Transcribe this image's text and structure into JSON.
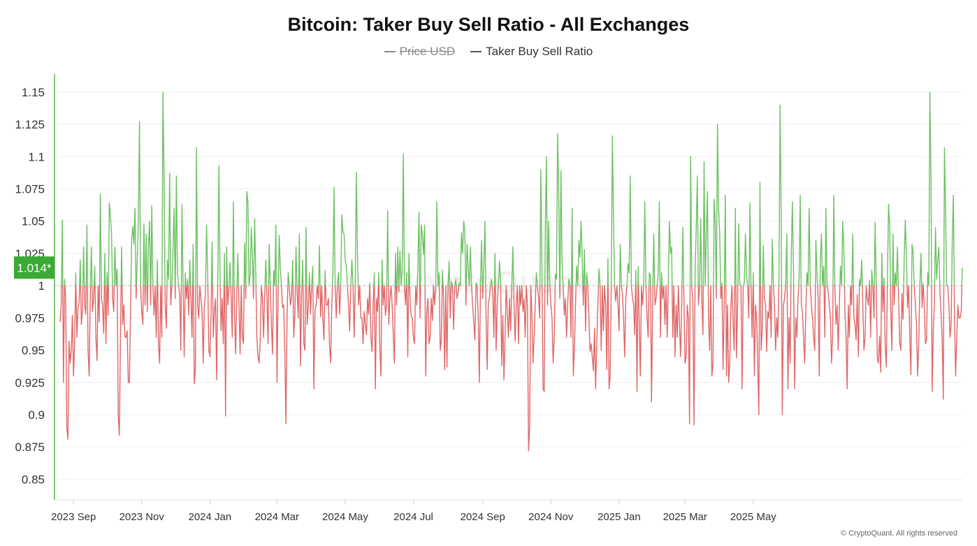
{
  "title": "Bitcoin: Taker Buy Sell Ratio - All Exchanges",
  "legend": [
    {
      "label": "Price USD",
      "hidden": true
    },
    {
      "label": "Taker Buy Sell Ratio",
      "hidden": false
    }
  ],
  "watermark": "CryptoQuant",
  "footer": "© CryptoQuant. All rights reserved",
  "current_value_label": "1.014*",
  "colors": {
    "above": "#6cc062",
    "below": "#e06666",
    "marker": "#3aaa35",
    "axis": "#56b84c"
  },
  "chart_data": {
    "type": "line",
    "title": "Bitcoin: Taker Buy Sell Ratio - All Exchanges",
    "xlabel": "",
    "ylabel": "",
    "baseline": 1,
    "ylim": [
      0.834,
      1.164
    ],
    "yticks": [
      0.85,
      0.875,
      0.9,
      0.925,
      0.95,
      0.975,
      1,
      1.025,
      1.05,
      1.075,
      1.1,
      1.125,
      1.15
    ],
    "ytick_labels": [
      "0.85",
      "0.875",
      "0.9",
      "0.925",
      "0.95",
      "0.975",
      "1",
      "1.025",
      "1.05",
      "1.075",
      "1.1",
      "1.125",
      "1.15"
    ],
    "xticks": [
      {
        "label": "2023 Sep",
        "index": 12
      },
      {
        "label": "2023 Nov",
        "index": 73
      },
      {
        "label": "2024 Jan",
        "index": 134
      },
      {
        "label": "2024 Mar",
        "index": 194
      },
      {
        "label": "2024 May",
        "index": 255
      },
      {
        "label": "2024 Jul",
        "index": 316
      },
      {
        "label": "2024 Sep",
        "index": 378
      },
      {
        "label": "2024 Nov",
        "index": 439
      },
      {
        "label": "2025 Jan",
        "index": 500
      },
      {
        "label": "2025 Mar",
        "index": 559
      },
      {
        "label": "2025 May",
        "index": 620
      }
    ],
    "x_start": "2023-08-21",
    "x_end": "2025-06-25",
    "current_value": 1.014,
    "series": [
      {
        "name": "Taker Buy Sell Ratio",
        "values": [
          0.972,
          0.985,
          1.051,
          0.925,
          1.005,
          0.99,
          0.89,
          0.881,
          0.957,
          0.94,
          0.95,
          0.977,
          0.93,
          0.955,
          1.01,
          0.96,
          0.983,
          0.987,
          1.02,
          0.97,
          0.98,
          1.03,
          0.985,
          0.978,
          1.047,
          0.95,
          0.93,
          0.99,
          1.03,
          0.98,
          0.99,
          1.015,
          0.96,
          0.942,
          1.0,
          0.972,
          1.071,
          0.99,
          0.985,
          0.963,
          1.025,
          0.955,
          1.01,
          0.977,
          1.064,
          1.055,
          1.04,
          0.99,
          0.98,
          1.03,
          1.0,
          1.013,
          0.9,
          0.884,
          0.96,
          1.03,
          0.97,
          0.985,
          0.96,
          0.96,
          0.965,
          0.925,
          0.925,
          0.98,
          1.035,
          1.046,
          1.032,
          1.06,
          0.99,
          1.02,
          1.05,
          1.127,
          1.0,
          0.98,
          0.97,
          1.048,
          0.985,
          1.04,
          0.98,
          1.03,
          1.05,
          0.985,
          1.062,
          0.999,
          0.977,
          1.0,
          0.96,
          1.02,
          0.955,
          0.94,
          1.0,
          0.96,
          1.15,
          1.085,
          0.985,
          0.967,
          1.02,
          1.005,
          1.087,
          0.985,
          1.0,
          1.03,
          1.06,
          0.99,
          1.085,
          1.01,
          1.0,
          0.993,
          0.95,
          1.063,
          1.0,
          0.945,
          1.01,
          0.99,
          1.005,
          0.977,
          1.02,
          0.99,
          0.96,
          1.032,
          0.924,
          0.935,
          1.107,
          0.985,
          0.975,
          1.0,
          0.99,
          0.98,
          0.94,
          0.983,
          0.994,
          1.047,
          1.01,
          0.95,
          0.945,
          0.977,
          1.034,
          0.96,
          0.98,
          0.99,
          0.927,
          1.0,
          1.093,
          1.01,
          0.965,
          0.99,
          0.955,
          1.025,
          0.899,
          1.03,
          0.985,
          0.997,
          1.018,
          0.99,
          0.96,
          1.065,
          0.977,
          0.947,
          0.99,
          1.025,
          0.985,
          0.947,
          1.0,
          0.96,
          0.955,
          1.033,
          0.99,
          1.073,
          1.065,
          1.0,
          1.008,
          1.045,
          1.023,
          0.99,
          1.052,
          1.01,
          0.96,
          0.945,
          0.94,
          0.957,
          1.0,
          0.99,
          0.96,
          0.993,
          1.02,
          0.99,
          0.955,
          1.032,
          1.0,
          0.97,
          0.947,
          1.012,
          1.0,
          1.047,
          0.925,
          0.993,
          1.039,
          1.013,
          1.0,
          0.983,
          0.985,
          0.95,
          0.893,
          0.975,
          1.01,
          1.0,
          0.985,
          0.99,
          1.02,
          0.96,
          0.977,
          1.03,
          0.995,
          0.975,
          1.04,
          0.938,
          0.991,
          1.02,
          0.955,
          0.95,
          1.045,
          0.97,
          0.983,
          1.01,
          0.978,
          1.0,
          1.015,
          0.92,
          0.98,
          0.985,
          1.0,
          0.99,
          1.031,
          0.976,
          1.0,
          0.975,
          0.958,
          1.012,
          0.985,
          0.985,
          0.99,
          0.953,
          0.94,
          0.985,
          1.011,
          1.076,
          1.0,
          0.975,
          1.0,
          1.01,
          0.978,
          1.0,
          1.055,
          1.042,
          1.04,
          1.02,
          1.015,
          1.0,
          0.985,
          0.965,
          1.0,
          1.02,
          1.0,
          0.96,
          1.0,
          1.088,
          1.025,
          0.985,
          1.0,
          0.975,
          0.975,
          0.955,
          0.98,
          0.97,
          0.962,
          0.99,
          0.978,
          1.002,
          0.96,
          0.949,
          0.985,
          1.01,
          0.92,
          0.99,
          0.98,
          1.01,
          0.95,
          0.93,
          1.02,
          0.985,
          1.0,
          0.977,
          0.985,
          1.058,
          0.97,
          0.99,
          1.0,
          0.985,
          0.962,
          0.94,
          1.025,
          0.985,
          1.03,
          0.995,
          1.027,
          1.0,
          1.012,
          1.102,
          1.0,
          0.985,
          1.01,
          0.945,
          1.025,
          0.99,
          0.977,
          0.975,
          0.96,
          0.955,
          1.0,
          0.985,
          1.015,
          1.057,
          0.975,
          1.047,
          1.04,
          1.024,
          1.047,
          0.93,
          0.98,
          0.99,
          0.955,
          0.96,
          0.99,
          0.973,
          1.0,
          0.985,
          1.0,
          1.065,
          1.0,
          1.01,
          0.95,
          0.958,
          1.012,
          0.99,
          0.935,
          1.0,
          0.937,
          1.0,
          1.019,
          0.975,
          1.003,
          1.0,
          0.966,
          1.0,
          1.005,
          0.99,
          0.995,
          1.002,
          1.0,
          1.041,
          1.025,
          1.05,
          1.043,
          0.985,
          1.032,
          1.014,
          1.0,
          1.03,
          1.0,
          0.985,
          0.972,
          0.958,
          1.002,
          1.0,
          0.975,
          0.925,
          1.0,
          1.035,
          0.99,
          1.015,
          1.05,
          0.975,
          0.935,
          0.987,
          0.99,
          1.0,
          1.005,
          0.995,
          0.96,
          1.025,
          0.95,
          0.985,
          1.0,
          1.019,
          1.005,
          0.938,
          0.977,
          0.927,
          0.96,
          1.0,
          0.98,
          0.96,
          0.99,
          0.965,
          1.0,
          1.03,
          0.985,
          0.957,
          0.985,
          1.0,
          0.955,
          1.0,
          0.985,
          1.0,
          0.98,
          0.99,
          0.96,
          1.0,
          0.985,
          0.872,
          0.891,
          1.0,
          0.978,
          0.94,
          0.96,
          0.985,
          1.01,
          1.0,
          0.99,
          0.975,
          1.09,
          1.013,
          0.92,
          0.918,
          1.045,
          1.1,
          0.985,
          1.05,
          1.0,
          0.985,
          0.975,
          0.94,
          0.96,
          1.009,
          1.005,
          1.118,
          1.07,
          0.99,
          1.089,
          1.017,
          1.0,
          0.977,
          0.99,
          0.96,
          0.985,
          1.005,
          1.0,
          0.96,
          1.06,
          0.93,
          0.95,
          0.985,
          1.015,
          1.0,
          1.035,
          1.022,
          1.05,
          1.022,
          0.985,
          1.028,
          0.965,
          1.01,
          1.0,
          0.975,
          0.949,
          0.955,
          0.945,
          0.934,
          0.967,
          0.92,
          0.955,
          0.985,
          1.013,
          1.0,
          0.95,
          1.0,
          0.965,
          1.0,
          0.985,
          0.935,
          1.021,
          0.92,
          0.93,
          1.0,
          1.116,
          1.05,
          1.0,
          0.988,
          1.0,
          0.985,
          0.965,
          1.032,
          1.0,
          0.994,
          0.975,
          0.945,
          0.99,
          1.0,
          1.017,
          1.01,
          1.085,
          1.0,
          0.99,
          0.985,
          0.962,
          1.012,
          0.918,
          1.015,
          0.97,
          0.93,
          1.0,
          0.985,
          1.0,
          1.065,
          1.0,
          0.975,
          0.96,
          1.01,
          1.008,
          0.91,
          0.985,
          1.04,
          0.985,
          0.99,
          1.0,
          1.01,
          1.065,
          0.96,
          1.01,
          0.99,
          1.0,
          0.97,
          1.0,
          0.96,
          1.0,
          1.05,
          1.025,
          1.03,
          0.96,
          1.0,
          0.945,
          0.985,
          0.96,
          1.0,
          0.97,
          0.945,
          0.985,
          1.045,
          0.99,
          0.94,
          0.945,
          0.985,
          0.975,
          0.893,
          1.1,
          1.0,
          0.985,
          0.892,
          1.01,
          1.045,
          1.085,
          0.985,
          1.0,
          1.052,
          0.99,
          0.962,
          1.096,
          1.0,
          1.04,
          1.073,
          0.975,
          0.95,
          1.0,
          0.93,
          0.94,
          1.067,
          1.05,
          0.99,
          1.125,
          1.06,
          1.04,
          0.99,
          1.002,
          0.935,
          0.985,
          1.07,
          0.93,
          0.985,
          0.925,
          0.94,
          0.985,
          1.0,
          0.97,
          0.95,
          1.06,
          0.944,
          0.985,
          1.048,
          1.0,
          1.0,
          0.92,
          1.0,
          1.002,
          1.04,
          1.008,
          1.0,
          0.975,
          1.064,
          1.0,
          0.96,
          1.01,
          0.93,
          0.985,
          0.975,
          0.94,
          0.9,
          1.08,
          0.95,
          0.965,
          1.031,
          0.99,
          0.985,
          0.949,
          0.98,
          0.975,
          1.0,
          0.96,
          1.036,
          1.0,
          0.986,
          0.95,
          0.975,
          0.96,
          1.005,
          1.14,
          1.05,
          0.9,
          0.985,
          0.99,
          1.0,
          1.04,
          0.92,
          0.975,
          0.94,
          1.025,
          1.065,
          1.01,
          0.92,
          0.975,
          0.96,
          0.99,
          1.005,
          1.07,
          0.985,
          0.98,
          0.96,
          0.94,
          0.98,
          1.01,
          1.0,
          1.06,
          1.0,
          0.985,
          0.975,
          0.96,
          0.95,
          1.035,
          1.01,
          0.99,
          0.93,
          1.02,
          1.04,
          1.0,
          1.015,
          0.96,
          1.06,
          1.0,
          0.995,
          0.985,
          0.976,
          0.94,
          0.96,
          1.07,
          1.0,
          0.97,
          0.985,
          0.95,
          0.985,
          1.015,
          1.0,
          1.05,
          1.03,
          0.98,
          0.96,
          0.92,
          0.985,
          0.96,
          1.0,
          0.985,
          1.04,
          0.975,
          0.97,
          0.958,
          0.993,
          0.945,
          1.005,
          1.0,
          1.02,
          0.985,
          0.95,
          0.96,
          1.0,
          0.99,
          0.985,
          1.004,
          0.96,
          1.012,
          1.0,
          0.975,
          1.049,
          1.0,
          0.944,
          0.94,
          0.961,
          0.933,
          1.025,
          0.98,
          1.006,
          0.954,
          0.937,
          1.005,
          1.063,
          1.047,
          0.98,
          0.95,
          1.04,
          0.985,
          1.01,
          1.0,
          1.03,
          0.99,
          0.956,
          0.95,
          0.994,
          0.974,
          1.02,
          1.051,
          1.023,
          0.983,
          1.0,
          0.96,
          0.931,
          1.032,
          1.026,
          1.0,
          0.985,
          0.97,
          0.93,
          0.955,
          1.0,
          1.025,
          0.983,
          1.002,
          0.985,
          0.955,
          0.958,
          1.01,
          1.0,
          1.15,
          1.08,
          0.918,
          0.965,
          0.985,
          1.045,
          1.005,
          1.02,
          1.03,
          0.995,
          0.978,
          0.958,
          0.912,
          1.107,
          1.06,
          1.0,
          1.0,
          0.985,
          0.96,
          0.97,
          1.035,
          1.07,
          0.975,
          0.93,
          0.96,
          0.985,
          0.975,
          0.975,
          0.98,
          1.014
        ]
      }
    ]
  }
}
